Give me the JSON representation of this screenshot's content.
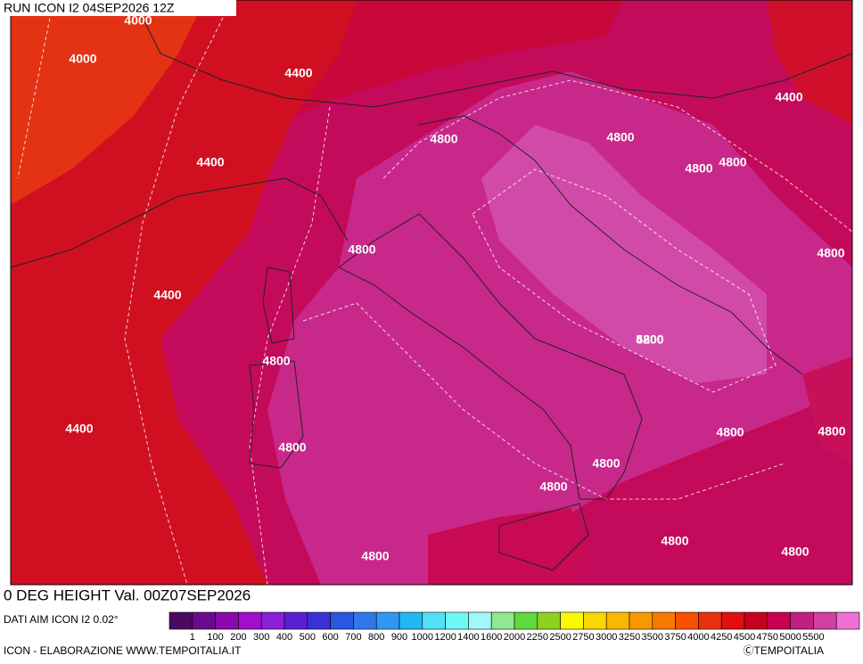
{
  "header": {
    "run": "RUN ICON I2 04SEP2026 12Z"
  },
  "map": {
    "contour_labels": [
      "4000",
      "4000",
      "4400",
      "4400",
      "4400",
      "4400",
      "4400",
      "4800",
      "4800",
      "4800",
      "4800",
      "4800",
      "4800",
      "4800",
      "4800",
      "4800",
      "4800",
      "4800",
      "4800",
      "4800",
      "4800",
      "4800",
      "4800",
      "5200"
    ]
  },
  "title": "0 DEG HEIGHT Val. 00Z07SEP2026",
  "legend": {
    "source": "DATI AIM ICON I2 0.02°",
    "colors": [
      "#4b0a5e",
      "#6a0a8c",
      "#8a0aaa",
      "#a010c8",
      "#8a20d8",
      "#5a20d0",
      "#3a30d8",
      "#2a56e0",
      "#3078e8",
      "#3098f0",
      "#20b8f0",
      "#50e0f8",
      "#70f8f8",
      "#a0f8f8",
      "#90e890",
      "#60d840",
      "#90d020",
      "#f8f800",
      "#f8d800",
      "#f8b800",
      "#f89800",
      "#f87800",
      "#f85000",
      "#e83010",
      "#e01010",
      "#c80020",
      "#c80050",
      "#c02080",
      "#d040a0",
      "#f070d8"
    ],
    "levels": [
      1,
      100,
      200,
      300,
      400,
      500,
      600,
      700,
      800,
      900,
      1000,
      1200,
      1400,
      1600,
      2000,
      2250,
      2500,
      2750,
      3000,
      3250,
      3500,
      3750,
      4000,
      4250,
      4500,
      4750,
      5000,
      5500
    ]
  },
  "footer": {
    "left": "ICON - ELABORAZIONE WWW.TEMPOITALIA.IT",
    "right": "ⒸTEMPOITALIA"
  }
}
